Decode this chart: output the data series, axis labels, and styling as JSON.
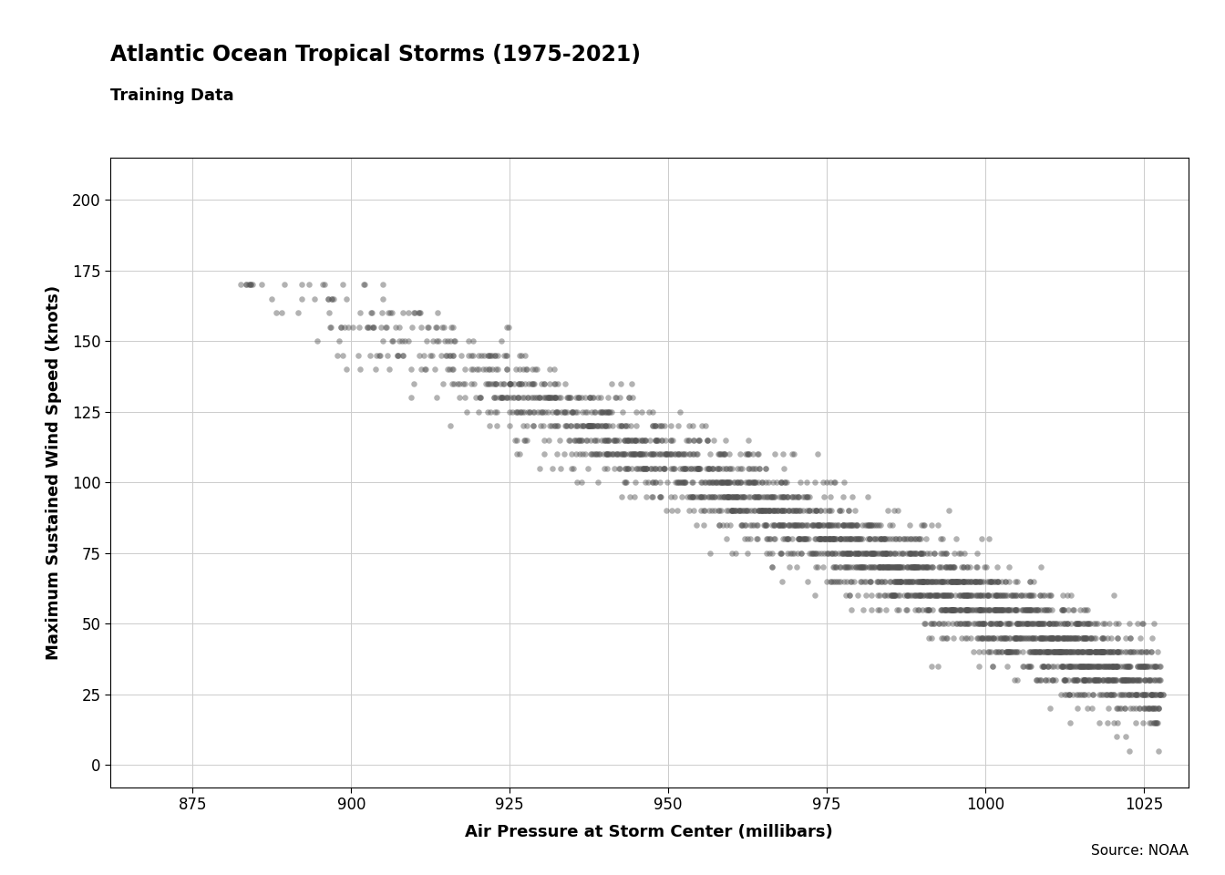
{
  "title": "Atlantic Ocean Tropical Storms (1975-2021)",
  "subtitle": "Training Data",
  "xlabel": "Air Pressure at Storm Center (millibars)",
  "ylabel": "Maximum Sustained Wind Speed (knots)",
  "source": "Source: NOAA",
  "xlim": [
    862,
    1032
  ],
  "ylim": [
    -8,
    215
  ],
  "xticks": [
    875,
    900,
    925,
    950,
    975,
    1000,
    1025
  ],
  "yticks": [
    0,
    25,
    50,
    75,
    100,
    125,
    150,
    175,
    200
  ],
  "background_color": "#ffffff",
  "plot_bg_color": "#ffffff",
  "grid_color": "#cccccc",
  "dot_color": "#555555",
  "dot_alpha": 0.45,
  "dot_size": 22,
  "seed": 42,
  "n_points": 3000,
  "slope": -1.03,
  "intercept": 1085,
  "x_min": 872,
  "x_max": 1028,
  "noise_std": 8,
  "title_fontsize": 17,
  "subtitle_fontsize": 13,
  "label_fontsize": 13,
  "tick_fontsize": 12,
  "source_fontsize": 11
}
